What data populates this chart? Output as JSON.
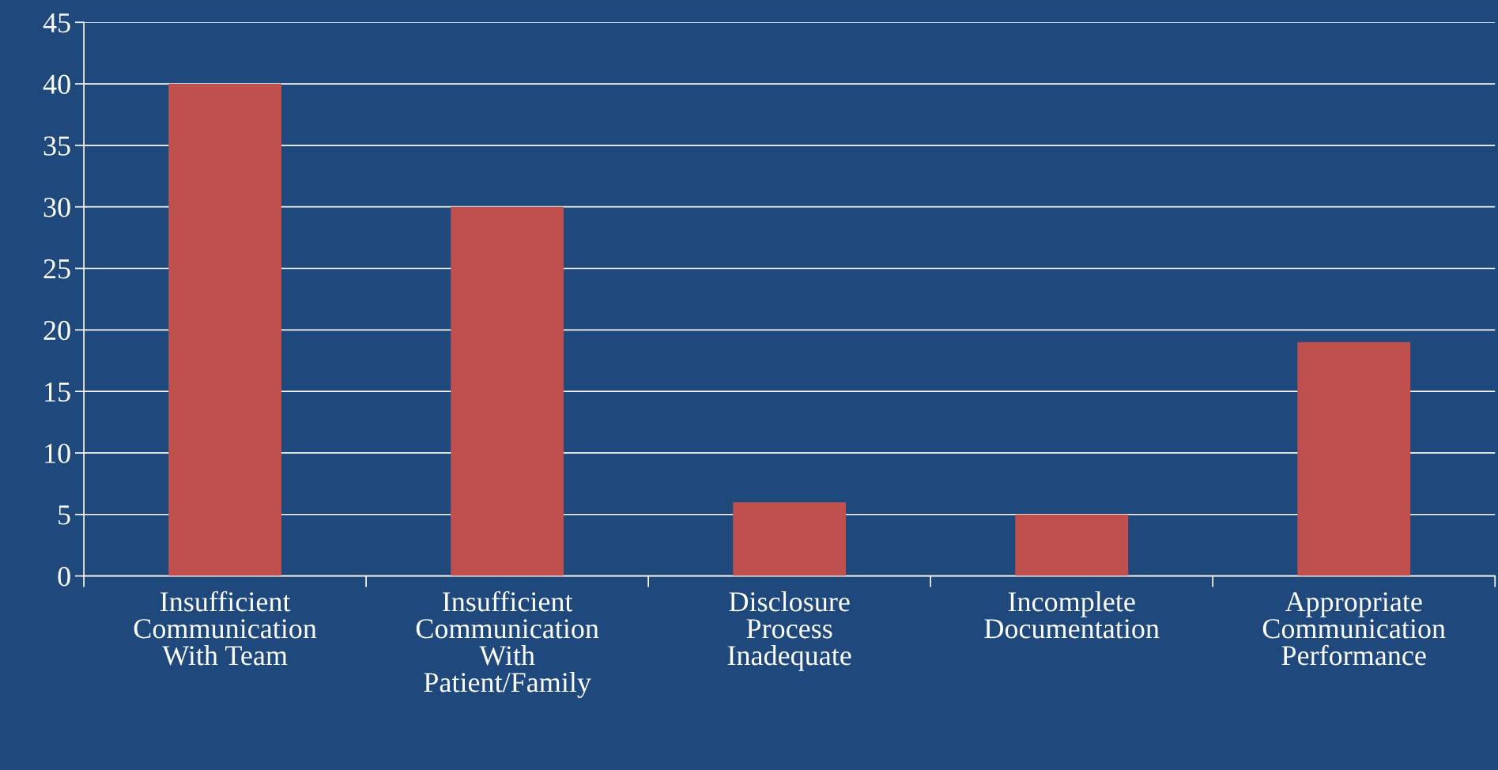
{
  "chart_data": {
    "type": "bar",
    "categories": [
      "Insufficient\nCommunication\nWith Team",
      "Insufficient\nCommunication\nWith\nPatient/Family",
      "Disclosure\nProcess\nInadequate",
      "Incomplete\nDocumentation",
      "Appropriate\nCommunication\nPerformance"
    ],
    "values": [
      40,
      30,
      6,
      5,
      19
    ],
    "color": "#c0504d",
    "ylim": [
      0,
      45
    ],
    "yticks": [
      0,
      5,
      10,
      15,
      20,
      25,
      30,
      35,
      40,
      45
    ],
    "grid": "y"
  }
}
